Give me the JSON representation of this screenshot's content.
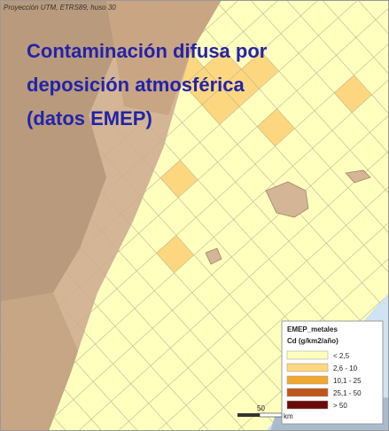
{
  "projection": "Proyección UTM, ETRS89, huso 30",
  "title_lines": [
    "Contaminación difusa por",
    "deposición atmosférica",
    "(datos EMEP)"
  ],
  "legend": {
    "title": "EMEP_metales",
    "subtitle": "Cd (g/km2/año)",
    "items": [
      {
        "label": "< 2,5",
        "color": "#ffffbe"
      },
      {
        "label": "2,6 - 10",
        "color": "#fcd77f"
      },
      {
        "label": "10,1 - 25",
        "color": "#f0a830"
      },
      {
        "label": "25,1 - 50",
        "color": "#c0561a"
      },
      {
        "label": "> 50",
        "color": "#6b0a0a"
      }
    ]
  },
  "scale": {
    "value": "50",
    "unit": "km"
  }
}
